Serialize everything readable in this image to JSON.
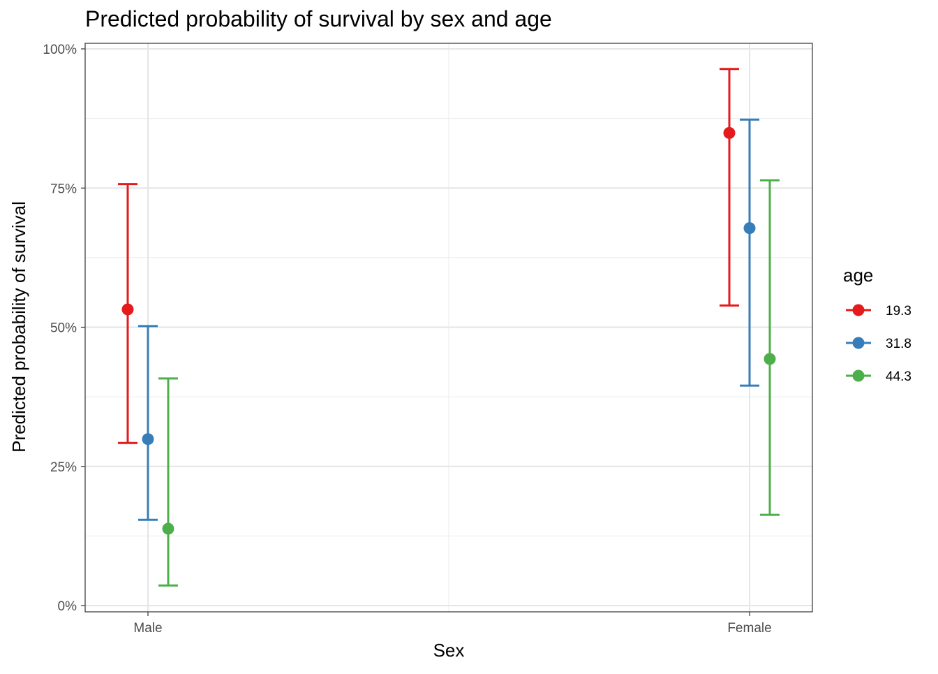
{
  "chart_data": {
    "type": "scatter",
    "title": "Predicted probability of survival by sex and age",
    "xlabel": "Sex",
    "ylabel": "Predicted probability of survival",
    "categories": [
      "Male",
      "Female"
    ],
    "ylim": [
      0,
      1
    ],
    "y_ticks": [
      0,
      0.25,
      0.5,
      0.75,
      1.0
    ],
    "y_tick_labels": [
      "0%",
      "25%",
      "50%",
      "75%",
      "100%"
    ],
    "grid": true,
    "legend": {
      "title": "age",
      "position": "right"
    },
    "series": [
      {
        "name": "19.3",
        "color": "#e41a1c",
        "values": [
          0.532,
          0.849
        ],
        "lower": [
          0.292,
          0.539
        ],
        "upper": [
          0.757,
          0.964
        ]
      },
      {
        "name": "31.8",
        "color": "#377eb8",
        "values": [
          0.299,
          0.678
        ],
        "lower": [
          0.154,
          0.395
        ],
        "upper": [
          0.502,
          0.873
        ]
      },
      {
        "name": "44.3",
        "color": "#4daf4a",
        "values": [
          0.138,
          0.443
        ],
        "lower": [
          0.036,
          0.163
        ],
        "upper": [
          0.408,
          0.764
        ]
      }
    ]
  }
}
